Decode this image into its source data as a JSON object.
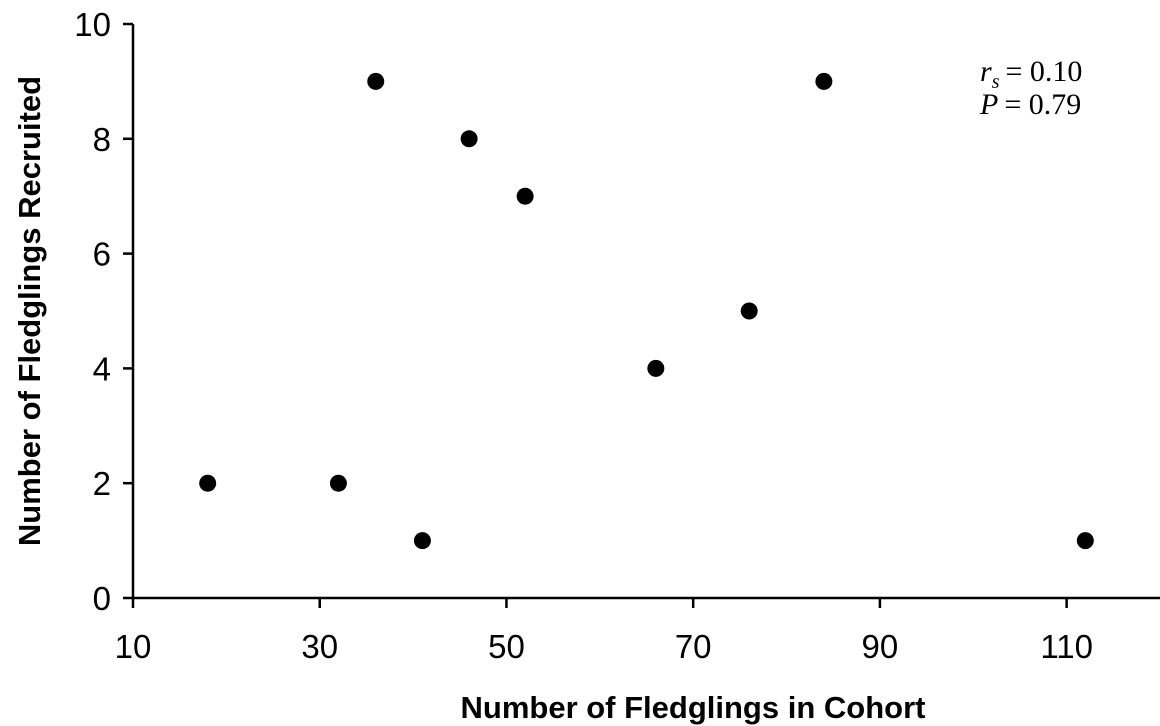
{
  "chart_data": {
    "type": "scatter",
    "xlabel": "Number of Fledglings in Cohort",
    "ylabel": "Number of Fledglings Recruited",
    "xlim": [
      10,
      120
    ],
    "ylim": [
      0,
      10
    ],
    "x_ticks": [
      10,
      30,
      50,
      70,
      90,
      110
    ],
    "y_ticks": [
      0,
      2,
      4,
      6,
      8,
      10
    ],
    "grid": false,
    "legend": "none",
    "points": [
      {
        "x": 18,
        "y": 2
      },
      {
        "x": 32,
        "y": 2
      },
      {
        "x": 36,
        "y": 9
      },
      {
        "x": 41,
        "y": 1
      },
      {
        "x": 46,
        "y": 8
      },
      {
        "x": 52,
        "y": 7
      },
      {
        "x": 66,
        "y": 4
      },
      {
        "x": 76,
        "y": 5
      },
      {
        "x": 84,
        "y": 9
      },
      {
        "x": 112,
        "y": 1
      }
    ],
    "annotations": {
      "rs_symbol": "r",
      "rs_subscript": "s",
      "rs_value": "= 0.10",
      "p_symbol": "P",
      "p_value": "= 0.79"
    },
    "point_color": "#000000"
  }
}
